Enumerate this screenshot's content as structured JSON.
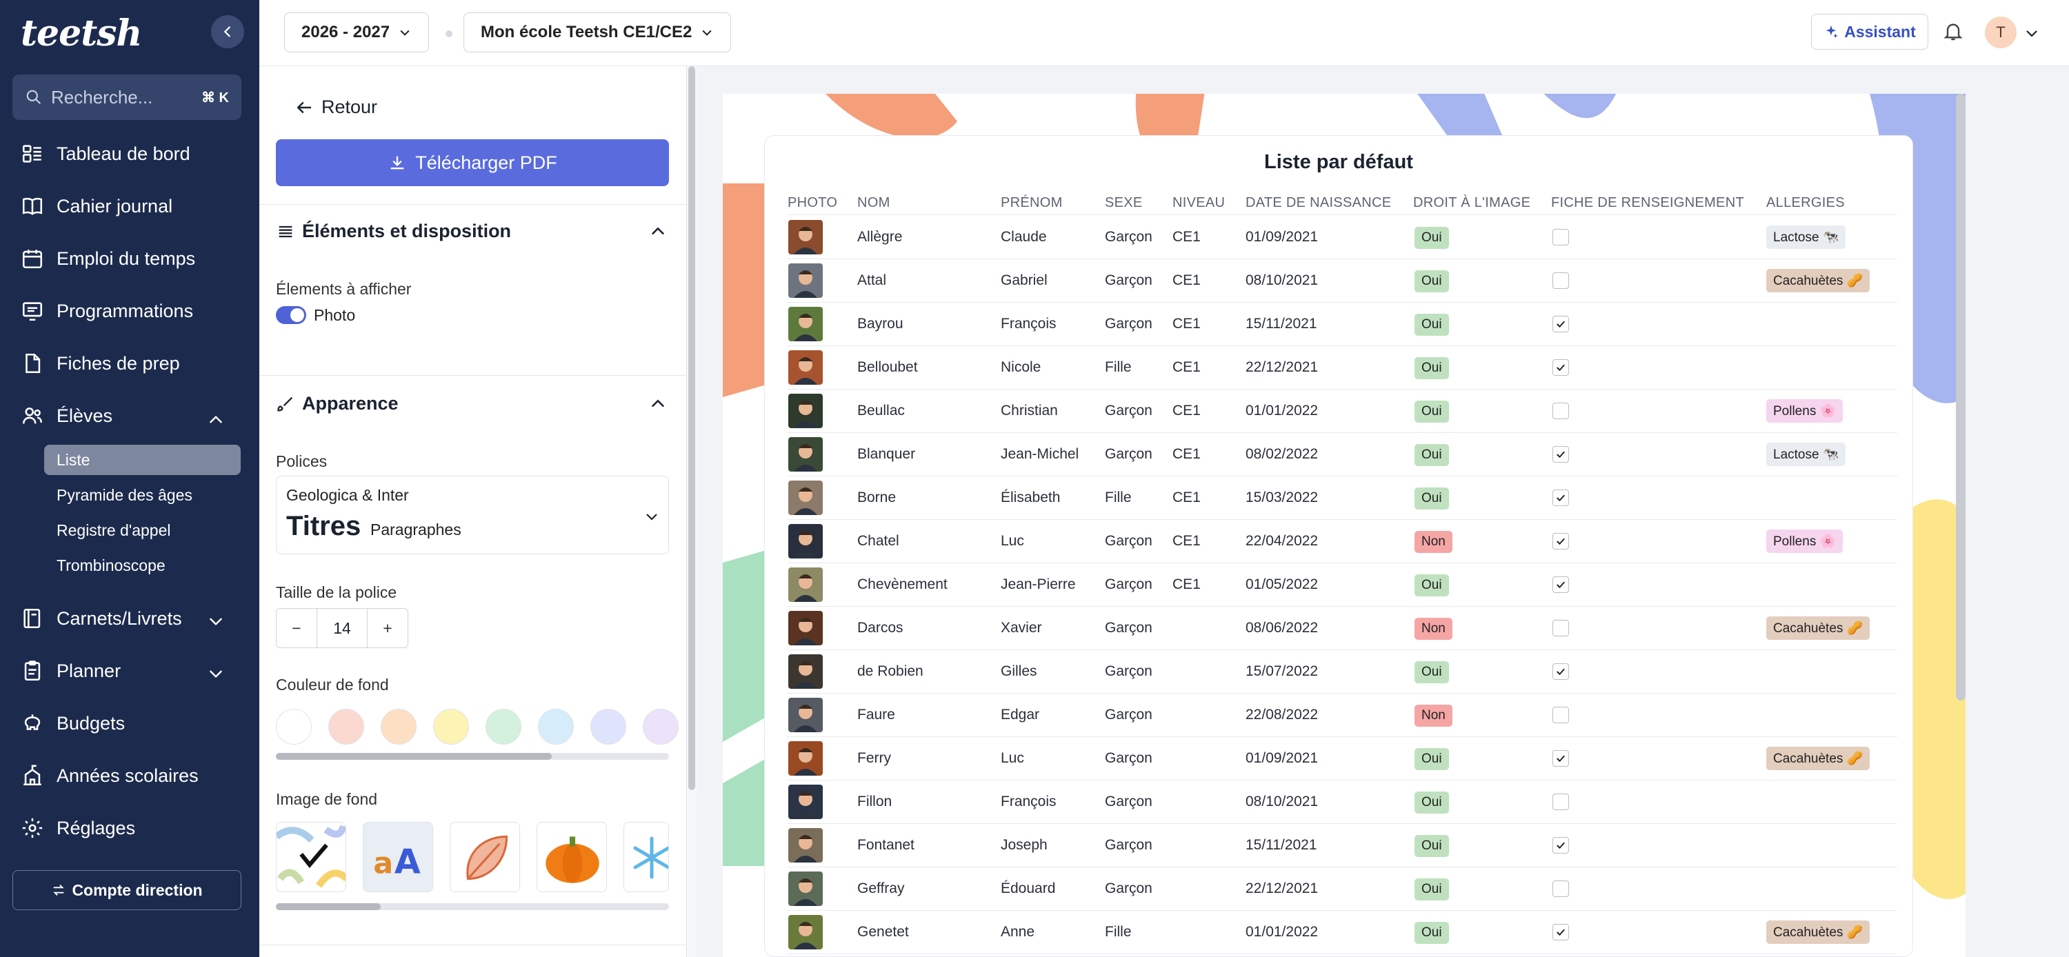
{
  "sidebar": {
    "logo": "teetsh",
    "search": {
      "placeholder": "Recherche...",
      "shortcut": "⌘ K"
    },
    "items": [
      {
        "label": "Tableau de bord",
        "icon": "dashboard-icon"
      },
      {
        "label": "Cahier journal",
        "icon": "book-icon"
      },
      {
        "label": "Emploi du temps",
        "icon": "calendar-icon"
      },
      {
        "label": "Programmations",
        "icon": "screen-icon"
      },
      {
        "label": "Fiches de prep",
        "icon": "document-icon"
      },
      {
        "label": "Élèves",
        "icon": "users-icon"
      }
    ],
    "sub_items": [
      {
        "label": "Liste",
        "active": true
      },
      {
        "label": "Pyramide des âges"
      },
      {
        "label": "Registre d'appel"
      },
      {
        "label": "Trombinoscope"
      }
    ],
    "items2": [
      {
        "label": "Carnets/Livrets",
        "icon": "notebook-icon"
      },
      {
        "label": "Planner",
        "icon": "clipboard-icon"
      },
      {
        "label": "Budgets",
        "icon": "piggy-bank-icon"
      },
      {
        "label": "Années scolaires",
        "icon": "school-icon"
      },
      {
        "label": "Réglages",
        "icon": "gear-icon"
      }
    ],
    "account_button": "Compte direction"
  },
  "topbar": {
    "year": "2026 - 2027",
    "school": "Mon école Teetsh CE1/CE2",
    "assistant": "Assistant",
    "user_initial": "T"
  },
  "panel": {
    "back": "Retour",
    "download": "Télécharger PDF",
    "section1": {
      "title": "Éléments et disposition",
      "show_label": "Élements à afficher",
      "toggle_label": "Photo",
      "toggle_on": true
    },
    "section2": {
      "title": "Apparence",
      "fonts_label": "Polices",
      "fonts_name": "Geologica & Inter",
      "fonts_titles": "Titres",
      "fonts_paragraphs": "Paragraphes",
      "size_label": "Taille de la police",
      "size_value": "14",
      "bg_color_label": "Couleur de fond",
      "bg_colors": [
        "#ffffff",
        "#fbd9d0",
        "#fde0c4",
        "#fdf3b4",
        "#d3f1dc",
        "#d6ecfb",
        "#dfe3fb",
        "#ece3fb"
      ],
      "bg_image_label": "Image de fond"
    }
  },
  "list": {
    "title": "Liste par défaut",
    "headers": [
      "PHOTO",
      "NOM",
      "PRÉNOM",
      "SEXE",
      "NIVEAU",
      "DATE DE NAISSANCE",
      "DROIT À L'IMAGE",
      "FICHE DE RENSEIGNEMENT",
      "ALLERGIES"
    ],
    "rows": [
      {
        "nom": "Allègre",
        "prenom": "Claude",
        "sexe": "Garçon",
        "niveau": "CE1",
        "date": "01/09/2021",
        "droit": "Oui",
        "fiche": false,
        "allergie": "Lactose 🐄",
        "allergie_color": "#e9ecf1",
        "photo_color": "#8a4b2e"
      },
      {
        "nom": "Attal",
        "prenom": "Gabriel",
        "sexe": "Garçon",
        "niveau": "CE1",
        "date": "08/10/2021",
        "droit": "Oui",
        "fiche": false,
        "allergie": "Cacahuètes 🥜",
        "allergie_color": "#e3cdbd",
        "photo_color": "#6d7480"
      },
      {
        "nom": "Bayrou",
        "prenom": "François",
        "sexe": "Garçon",
        "niveau": "CE1",
        "date": "15/11/2021",
        "droit": "Oui",
        "fiche": true,
        "allergie": "",
        "allergie_color": "",
        "photo_color": "#5d7a3c"
      },
      {
        "nom": "Belloubet",
        "prenom": "Nicole",
        "sexe": "Fille",
        "niveau": "CE1",
        "date": "22/12/2021",
        "droit": "Oui",
        "fiche": true,
        "allergie": "",
        "allergie_color": "",
        "photo_color": "#a8532f"
      },
      {
        "nom": "Beullac",
        "prenom": "Christian",
        "sexe": "Garçon",
        "niveau": "CE1",
        "date": "01/01/2022",
        "droit": "Oui",
        "fiche": false,
        "allergie": "Pollens 🌸",
        "allergie_color": "#f6d5ee",
        "photo_color": "#2d3a2c"
      },
      {
        "nom": "Blanquer",
        "prenom": "Jean-Michel",
        "sexe": "Garçon",
        "niveau": "CE1",
        "date": "08/02/2022",
        "droit": "Oui",
        "fiche": true,
        "allergie": "Lactose 🐄",
        "allergie_color": "#e9ecf1",
        "photo_color": "#3a4a36"
      },
      {
        "nom": "Borne",
        "prenom": "Élisabeth",
        "sexe": "Fille",
        "niveau": "CE1",
        "date": "15/03/2022",
        "droit": "Oui",
        "fiche": true,
        "allergie": "",
        "allergie_color": "",
        "photo_color": "#8c7a6a"
      },
      {
        "nom": "Chatel",
        "prenom": "Luc",
        "sexe": "Garçon",
        "niveau": "CE1",
        "date": "22/04/2022",
        "droit": "Non",
        "fiche": true,
        "allergie": "Pollens 🌸",
        "allergie_color": "#f6d5ee",
        "photo_color": "#2a2f3d"
      },
      {
        "nom": "Chevènement",
        "prenom": "Jean-Pierre",
        "sexe": "Garçon",
        "niveau": "CE1",
        "date": "01/05/2022",
        "droit": "Oui",
        "fiche": true,
        "allergie": "",
        "allergie_color": "",
        "photo_color": "#8d8a64"
      },
      {
        "nom": "Darcos",
        "prenom": "Xavier",
        "sexe": "Garçon",
        "niveau": "",
        "date": "08/06/2022",
        "droit": "Non",
        "fiche": false,
        "allergie": "Cacahuètes 🥜",
        "allergie_color": "#e3cdbd",
        "photo_color": "#5a3322"
      },
      {
        "nom": "de Robien",
        "prenom": "Gilles",
        "sexe": "Garçon",
        "niveau": "",
        "date": "15/07/2022",
        "droit": "Oui",
        "fiche": true,
        "allergie": "",
        "allergie_color": "",
        "photo_color": "#3c3630"
      },
      {
        "nom": "Faure",
        "prenom": "Edgar",
        "sexe": "Garçon",
        "niveau": "",
        "date": "22/08/2022",
        "droit": "Non",
        "fiche": false,
        "allergie": "",
        "allergie_color": "",
        "photo_color": "#555a63"
      },
      {
        "nom": "Ferry",
        "prenom": "Luc",
        "sexe": "Garçon",
        "niveau": "",
        "date": "01/09/2021",
        "droit": "Oui",
        "fiche": true,
        "allergie": "Cacahuètes 🥜",
        "allergie_color": "#e3cdbd",
        "photo_color": "#9a4a22"
      },
      {
        "nom": "Fillon",
        "prenom": "François",
        "sexe": "Garçon",
        "niveau": "",
        "date": "08/10/2021",
        "droit": "Oui",
        "fiche": false,
        "allergie": "",
        "allergie_color": "",
        "photo_color": "#2a3446"
      },
      {
        "nom": "Fontanet",
        "prenom": "Joseph",
        "sexe": "Garçon",
        "niveau": "",
        "date": "15/11/2021",
        "droit": "Oui",
        "fiche": true,
        "allergie": "",
        "allergie_color": "",
        "photo_color": "#7a6d5a"
      },
      {
        "nom": "Geffray",
        "prenom": "Édouard",
        "sexe": "Garçon",
        "niveau": "",
        "date": "22/12/2021",
        "droit": "Oui",
        "fiche": false,
        "allergie": "",
        "allergie_color": "",
        "photo_color": "#5c6a58"
      },
      {
        "nom": "Genetet",
        "prenom": "Anne",
        "sexe": "Fille",
        "niveau": "",
        "date": "01/01/2022",
        "droit": "Oui",
        "fiche": true,
        "allergie": "Cacahuètes 🥜",
        "allergie_color": "#e3cdbd",
        "photo_color": "#6a7a3a"
      }
    ]
  }
}
